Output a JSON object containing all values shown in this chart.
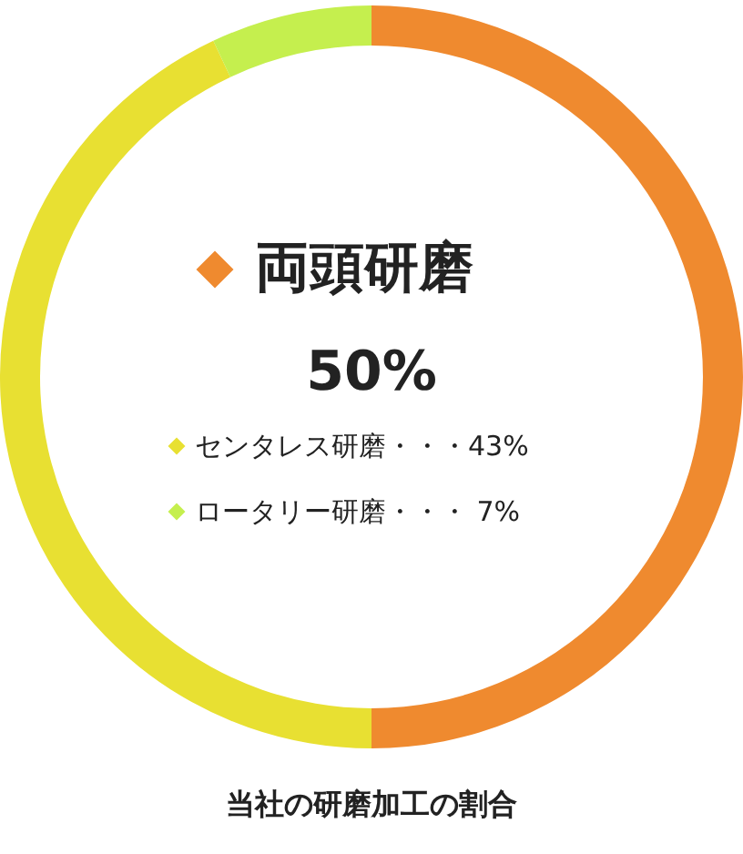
{
  "chart_data": {
    "type": "donut",
    "title": "当社の研磨加工の割合",
    "categories": [
      "両頭研磨",
      "センタレス研磨",
      "ロータリー研磨"
    ],
    "values": [
      50,
      43,
      7
    ],
    "colors": [
      "#ef8a2f",
      "#e8e032",
      "#c5ef4e"
    ],
    "value_labels": [
      "50%",
      "・・・43%",
      "・・・ 7%"
    ],
    "legend": "center"
  }
}
